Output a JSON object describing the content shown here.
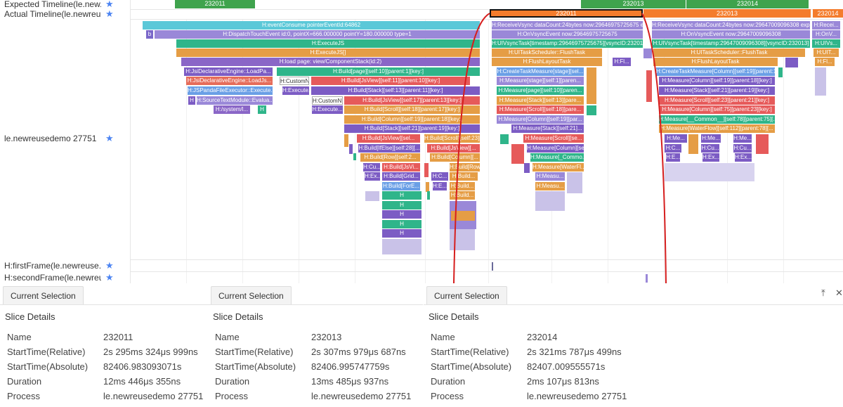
{
  "rows": {
    "expected": "Expected Timeline(le.new...",
    "actual": "Actual Timeline(le.newreu...",
    "process": "le.newreusedemo 27751",
    "first_frame": "H:firstFrame(le.newreuse...",
    "second_frame": "H:secondFrame(le.newreus...",
    "star": "★"
  },
  "expected_frames": [
    {
      "label": "232011",
      "color": "#3fa34d"
    },
    {
      "label": "232013",
      "color": "#3fa34d"
    },
    {
      "label": "232014",
      "color": "#3fa34d"
    }
  ],
  "actual_frames": [
    {
      "label": "232011",
      "color": "#f47c2c"
    },
    {
      "label": "232013",
      "color": "#f47c2c"
    },
    {
      "label": "232014",
      "color": "#f47c2c"
    }
  ],
  "slices_left": [
    {
      "label": "H:eventConsume pointerEventId:64862",
      "color": "#5bc8d8"
    },
    {
      "label": "b",
      "color": "#7a67c9"
    },
    {
      "label": "H:DispatchTouchEvent id:0, pointX=666.000000 pointY=180.000000 type=1",
      "color": "#9a88d8"
    },
    {
      "label": "H:ExecuteJS",
      "color": "#2fb58a"
    },
    {
      "label": "H:ExecuteJS[]",
      "color": "#e59d45"
    },
    {
      "label": "H:load page: view/ComponentStack(id:2)",
      "color": "#8a66c7"
    },
    {
      "label": "H:JsiDeclarativeEngine::LoadPa...",
      "color": "#7c5cc4"
    },
    {
      "label": "H:Build[page][self:10][parent:1][key:]",
      "color": "#2fb58a"
    },
    {
      "label": "H:JsiDeclarativeEngine::LoadJs...",
      "color": "#e66c5a"
    },
    {
      "label": "H:CustomN...",
      "color": "#fff"
    },
    {
      "label": "H:Build[JsView][self:11][parent:10][key:]",
      "color": "#e65a5a"
    },
    {
      "label": "H:JSPandaFileExecutor::Execute...",
      "color": "#6a9fe6"
    },
    {
      "label": "H:Execute...",
      "color": "#7c5cc4"
    },
    {
      "label": "H:Build[Stack][self:13][parent:11][key:]",
      "color": "#7c5cc4"
    },
    {
      "label": "H",
      "color": "#7c5cc4"
    },
    {
      "label": "H:SourceTextModule::Evalua...",
      "color": "#9a88d8"
    },
    {
      "label": "H:CustomN...",
      "color": "#fff"
    },
    {
      "label": "H:Build[JsView][self:17][parent:13][key:]",
      "color": "#e65a5a"
    },
    {
      "label": "H:/system/l...",
      "color": "#8a66c7"
    },
    {
      "label": "H",
      "color": "#2fb58a"
    },
    {
      "label": "H:Execute...",
      "color": "#7c5cc4"
    },
    {
      "label": "H:Build[Scroll][self:18][parent:17][key:]",
      "color": "#e59d45"
    },
    {
      "label": "H:Build[Column][self:19][parent:18][key:]",
      "color": "#e59d45"
    },
    {
      "label": "H:Build[Stack][self:21][parent:19][key:]",
      "color": "#7c5cc4"
    },
    {
      "label": "H:Build[JsView][sel...",
      "color": "#e65a5a"
    },
    {
      "label": "H:Build[Scroll][self:23][...",
      "color": "#e59d45"
    },
    {
      "label": "H:Build[IfElse][self:28][...",
      "color": "#7c5cc4"
    },
    {
      "label": "H:Build[JsView][...",
      "color": "#e65a5a"
    },
    {
      "label": "H:Build[Row][self:2...",
      "color": "#e59d45"
    },
    {
      "label": "H:Build[Column][...",
      "color": "#e59d45"
    },
    {
      "label": "H:Cu...",
      "color": "#7c5cc4"
    },
    {
      "label": "H:Build[JsVi...",
      "color": "#e65a5a"
    },
    {
      "label": "H:Build[Row][...",
      "color": "#e59d45"
    },
    {
      "label": "H:Ex...",
      "color": "#7c5cc4"
    },
    {
      "label": "H:Build[Grid...",
      "color": "#7c5cc4"
    },
    {
      "label": "H:C...",
      "color": "#7c5cc4"
    },
    {
      "label": "H:Build...",
      "color": "#e59d45"
    },
    {
      "label": "H:Build[ForE...",
      "color": "#6a9fe6"
    },
    {
      "label": "H:E...",
      "color": "#7c5cc4"
    },
    {
      "label": "H:Build...",
      "color": "#e59d45"
    },
    {
      "label": "H:Build...",
      "color": "#e59d45"
    },
    {
      "label": "H",
      "color": "#2fb58a"
    },
    {
      "label": "H",
      "color": "#2fb58a"
    },
    {
      "label": "H",
      "color": "#7c5cc4"
    },
    {
      "label": "H",
      "color": "#2fb58a"
    },
    {
      "label": "H",
      "color": "#7c5cc4"
    }
  ],
  "slices_mid": [
    {
      "label": "H:ReceiveVsync dataCount:24bytes now:29646975725675 exp...",
      "color": "#9a88d8"
    },
    {
      "label": "H:OnVsyncEvent now:29646975725675",
      "color": "#9a88d8"
    },
    {
      "label": "H:UIVsyncTask[timestamp:29646975725675][vsyncID:23201...",
      "color": "#2fb58a"
    },
    {
      "label": "H:UITaskScheduler::FlushTask",
      "color": "#e59d45"
    },
    {
      "label": "H:FlushLayoutTask",
      "color": "#e59d45"
    },
    {
      "label": "H:Fl...",
      "color": "#7c5cc4"
    },
    {
      "label": "H:CreateTaskMeasure[stage][sel...",
      "color": "#6a9fe6"
    },
    {
      "label": "H:Measure[stage][self:1][paren...",
      "color": "#9a88d8"
    },
    {
      "label": "H:Measure[page][self:10][paren...",
      "color": "#2fb58a"
    },
    {
      "label": "H:Measure[Stack][self:13][pare...",
      "color": "#e59d45"
    },
    {
      "label": "H:Measure[Scroll][self:18][pare...",
      "color": "#e65a5a"
    },
    {
      "label": "H:Measure[Column][self:19][par...",
      "color": "#9a88d8"
    },
    {
      "label": "H:Measure[Stack][self:21]...",
      "color": "#7c5cc4"
    },
    {
      "label": "H:Measure[Scroll][se...",
      "color": "#e65a5a"
    },
    {
      "label": "H:Measure[Column][se...",
      "color": "#7c5cc4"
    },
    {
      "label": "H:Measure[_Commo...",
      "color": "#2fb58a"
    },
    {
      "label": "H:Measure[WaterFl...",
      "color": "#e59d45"
    },
    {
      "label": "H:Measu...",
      "color": "#9a88d8"
    },
    {
      "label": "H:Measu...",
      "color": "#e59d45"
    }
  ],
  "slices_right": [
    {
      "label": "H:ReceiveVsync dataCount:24bytes now:29647009096308 expected...",
      "color": "#9a88d8"
    },
    {
      "label": "H:OnVsyncEvent now:29647009096308",
      "color": "#9a88d8"
    },
    {
      "label": "H:UIVsyncTask[timestamp:29647009096308][vsyncID:232013]",
      "color": "#2fb58a"
    },
    {
      "label": "H:UITaskScheduler::FlushTask",
      "color": "#e59d45"
    },
    {
      "label": "H:FlushLayoutTask",
      "color": "#e59d45"
    },
    {
      "label": "H:CreateTaskMeasure[Column][self:19][parent:18][key:]",
      "color": "#6a9fe6"
    },
    {
      "label": "H:Measure[Column][self:19][parent:18][key:]",
      "color": "#7c5cc4"
    },
    {
      "label": "H:Measure[Stack][self:21][parent:19][key:]",
      "color": "#7c5cc4"
    },
    {
      "label": "H:Measure[Scroll][self:23][parent:21][key:]",
      "color": "#e65a5a"
    },
    {
      "label": "H:Measure[Column][self:75][parent:23][key:]",
      "color": "#e65a5a"
    },
    {
      "label": "H:Measure[__Common__][self:78][parent:75][...",
      "color": "#2fb58a"
    },
    {
      "label": "H:Measure[WaterFlow][self:112][parent:78][...",
      "color": "#e59d45"
    },
    {
      "label": "H:Me...",
      "color": "#7c5cc4"
    },
    {
      "label": "H:Me...",
      "color": "#7c5cc4"
    },
    {
      "label": "H:Me...",
      "color": "#7c5cc4"
    },
    {
      "label": "H:C...",
      "color": "#7c5cc4"
    },
    {
      "label": "H:Cu...",
      "color": "#7c5cc4"
    },
    {
      "label": "H:Cu...",
      "color": "#7c5cc4"
    },
    {
      "label": "H:E...",
      "color": "#7c5cc4"
    },
    {
      "label": "H:Ex...",
      "color": "#7c5cc4"
    },
    {
      "label": "H:Ex...",
      "color": "#7c5cc4"
    }
  ],
  "slices_far": [
    {
      "label": "H:Recei...",
      "color": "#9a88d8"
    },
    {
      "label": "H:OnV...",
      "color": "#9a88d8"
    },
    {
      "label": "H:UIVs...",
      "color": "#2fb58a"
    },
    {
      "label": "H:UIT...",
      "color": "#e59d45"
    },
    {
      "label": "H:Fl...",
      "color": "#e59d45"
    }
  ],
  "panels": [
    {
      "tab": "Current Selection",
      "title": "Slice Details",
      "name_key": "Name",
      "name": "232011",
      "start_rel_key": "StartTime(Relative)",
      "start_rel": "2s 295ms 324μs 999ns",
      "start_abs_key": "StartTime(Absolute)",
      "start_abs": "82406.983093071s",
      "duration_key": "Duration",
      "duration": "12ms 446μs 355ns",
      "process_key": "Process",
      "process": "le.newreusedemo 27751"
    },
    {
      "tab": "Current Selection",
      "title": "Slice Details",
      "name_key": "Name",
      "name": "232013",
      "start_rel_key": "StartTime(Relative)",
      "start_rel": "2s 307ms 979μs 687ns",
      "start_abs_key": "StartTime(Absolute)",
      "start_abs": "82406.995747759s",
      "duration_key": "Duration",
      "duration": "13ms 485μs 937ns",
      "process_key": "Process",
      "process": "le.newreusedemo 27751"
    },
    {
      "tab": "Current Selection",
      "title": "Slice Details",
      "name_key": "Name",
      "name": "232014",
      "start_rel_key": "StartTime(Relative)",
      "start_rel": "2s 321ms 787μs 499ns",
      "start_abs_key": "StartTime(Absolute)",
      "start_abs": "82407.009555571s",
      "duration_key": "Duration",
      "duration": "2ms 107μs 813ns",
      "process_key": "Process",
      "process": "le.newreusedemo 27751"
    }
  ],
  "icons": {
    "pin": "⤒",
    "close": "✕"
  },
  "colors": {
    "star": "#4c84f2",
    "curve": "#d61e1e"
  }
}
